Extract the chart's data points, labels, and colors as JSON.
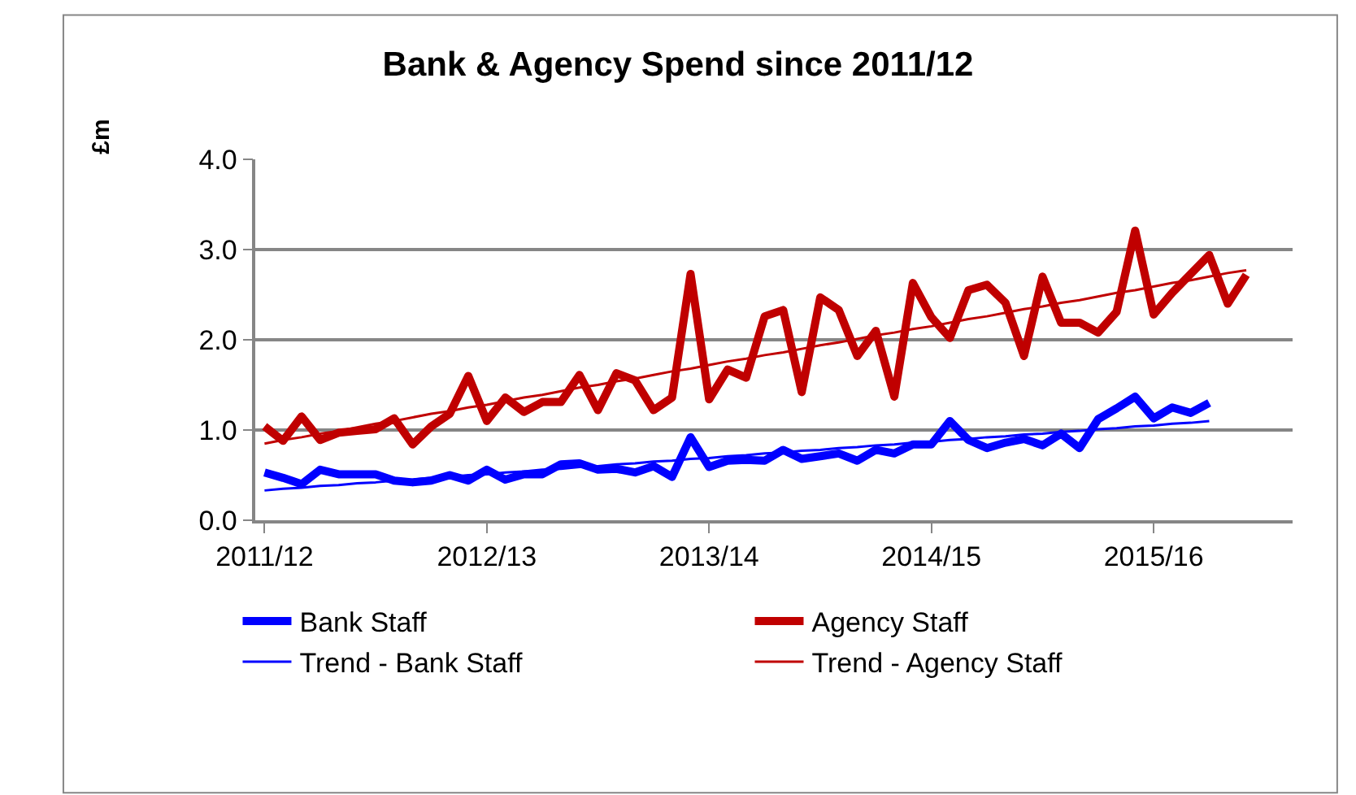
{
  "chart_data": {
    "type": "line",
    "title": "Bank & Agency Spend since 2011/12",
    "ylabel": "£m",
    "categories": [
      "2011/12",
      null,
      null,
      null,
      null,
      null,
      null,
      null,
      null,
      null,
      null,
      null,
      "2012/13",
      null,
      null,
      null,
      null,
      null,
      null,
      null,
      null,
      null,
      null,
      null,
      "2013/14",
      null,
      null,
      null,
      null,
      null,
      null,
      null,
      null,
      null,
      null,
      null,
      "2014/15",
      null,
      null,
      null,
      null,
      null,
      null,
      null,
      null,
      null,
      null,
      null,
      "2015/16",
      null,
      null,
      null,
      null,
      null,
      null,
      null
    ],
    "series": [
      {
        "name": "Bank Staff",
        "color": "#0000ff",
        "values": [
          0.53,
          0.47,
          0.4,
          0.56,
          0.51,
          0.51,
          0.51,
          0.44,
          0.42,
          0.44,
          0.5,
          0.44,
          0.56,
          0.45,
          0.51,
          0.51,
          0.62,
          0.63,
          0.56,
          0.57,
          0.53,
          0.6,
          0.48,
          0.92,
          0.59,
          0.66,
          0.67,
          0.66,
          0.78,
          0.68,
          0.71,
          0.74,
          0.66,
          0.78,
          0.74,
          0.84,
          0.84,
          1.1,
          0.89,
          0.8,
          0.86,
          0.9,
          0.83,
          0.96,
          0.8,
          1.12,
          1.24,
          1.37,
          1.13,
          1.25,
          1.19,
          1.3,
          null,
          null,
          null,
          null
        ]
      },
      {
        "name": "Agency Staff",
        "color": "#c00000",
        "values": [
          1.04,
          0.88,
          1.15,
          0.89,
          0.97,
          0.99,
          1.01,
          1.13,
          0.84,
          1.04,
          1.18,
          1.6,
          1.1,
          1.36,
          1.2,
          1.31,
          1.31,
          1.61,
          1.22,
          1.63,
          1.55,
          1.22,
          1.36,
          2.73,
          1.34,
          1.67,
          1.58,
          2.26,
          2.33,
          1.42,
          2.47,
          2.33,
          1.82,
          2.1,
          1.37,
          2.63,
          2.25,
          2.02,
          2.55,
          2.61,
          2.41,
          1.82,
          2.7,
          2.19,
          2.19,
          2.08,
          2.31,
          3.21,
          2.28,
          2.52,
          2.73,
          2.94,
          2.4,
          2.72,
          null,
          null
        ]
      },
      {
        "name": "Trend - Bank Staff",
        "color": "#0000ff",
        "values": [
          0.33,
          0.35,
          0.36,
          0.38,
          0.39,
          0.41,
          0.42,
          0.44,
          0.45,
          0.47,
          0.48,
          0.5,
          0.51,
          0.53,
          0.54,
          0.56,
          0.57,
          0.59,
          0.6,
          0.62,
          0.63,
          0.65,
          0.66,
          0.68,
          0.69,
          0.71,
          0.72,
          0.74,
          0.75,
          0.77,
          0.78,
          0.8,
          0.81,
          0.83,
          0.84,
          0.86,
          0.87,
          0.89,
          0.9,
          0.92,
          0.93,
          0.95,
          0.96,
          0.98,
          0.99,
          1.01,
          1.02,
          1.04,
          1.05,
          1.07,
          1.08,
          1.1,
          null,
          null,
          null,
          null
        ]
      },
      {
        "name": "Trend - Agency Staff",
        "color": "#c00000",
        "values": [
          0.85,
          0.89,
          0.92,
          0.96,
          0.99,
          1.03,
          1.07,
          1.1,
          1.14,
          1.18,
          1.21,
          1.25,
          1.28,
          1.32,
          1.36,
          1.39,
          1.43,
          1.47,
          1.5,
          1.54,
          1.57,
          1.61,
          1.65,
          1.68,
          1.72,
          1.76,
          1.79,
          1.83,
          1.86,
          1.9,
          1.94,
          1.97,
          2.01,
          2.05,
          2.08,
          2.12,
          2.15,
          2.19,
          2.23,
          2.26,
          2.3,
          2.34,
          2.37,
          2.41,
          2.44,
          2.48,
          2.52,
          2.55,
          2.59,
          2.63,
          2.66,
          2.7,
          2.74,
          2.77,
          null,
          null
        ]
      }
    ],
    "ylim": [
      0,
      4
    ],
    "yticks": [
      {
        "value": 0,
        "label": "0.0"
      },
      {
        "value": 1,
        "label": "1.0"
      },
      {
        "value": 2,
        "label": "2.0"
      },
      {
        "value": 3,
        "label": "3.0"
      },
      {
        "value": 4,
        "label": "4.0"
      }
    ],
    "grid": "y",
    "legend": "bottom",
    "marker": "none"
  }
}
